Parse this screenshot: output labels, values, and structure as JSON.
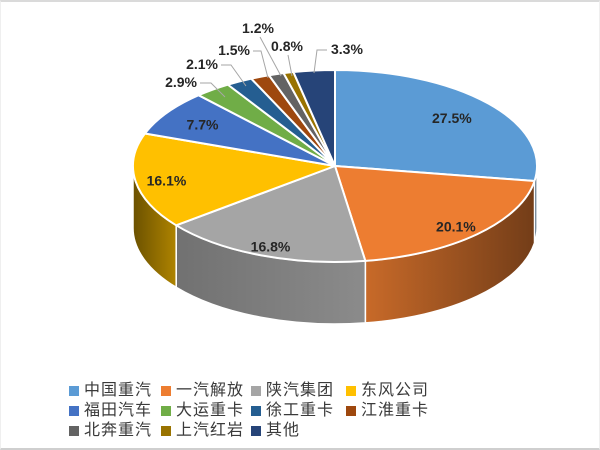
{
  "chart_data": {
    "type": "pie",
    "style": "3d",
    "title": "",
    "legend_position": "bottom",
    "direction": "clockwise",
    "start_angle_deg": 0,
    "unit": "%",
    "series": [
      {
        "name": "中国重汽",
        "value": 27.5,
        "label": "27.5%",
        "color": "#5B9BD5"
      },
      {
        "name": "一汽解放",
        "value": 20.1,
        "label": "20.1%",
        "color": "#ED7D31"
      },
      {
        "name": "陕汽集团",
        "value": 16.8,
        "label": "16.8%",
        "color": "#A5A5A5"
      },
      {
        "name": "东风公司",
        "value": 16.1,
        "label": "16.1%",
        "color": "#FFC000"
      },
      {
        "name": "福田汽车",
        "value": 7.7,
        "label": "7.7%",
        "color": "#4472C4"
      },
      {
        "name": "大运重卡",
        "value": 2.9,
        "label": "2.9%",
        "color": "#70AD47"
      },
      {
        "name": "徐工重卡",
        "value": 2.1,
        "label": "2.1%",
        "color": "#255E91"
      },
      {
        "name": "江淮重卡",
        "value": 1.5,
        "label": "1.5%",
        "color": "#9E480E"
      },
      {
        "name": "北奔重汽",
        "value": 1.2,
        "label": "1.2%",
        "color": "#636363"
      },
      {
        "name": "上汽红岩",
        "value": 0.8,
        "label": "0.8%",
        "color": "#997300"
      },
      {
        "name": "其他",
        "value": 3.3,
        "label": "3.3%",
        "color": "#264478"
      }
    ],
    "leader_line_color": "#A6A6A6",
    "label_color": "#262626",
    "separator_color": "#FFFFFF"
  }
}
